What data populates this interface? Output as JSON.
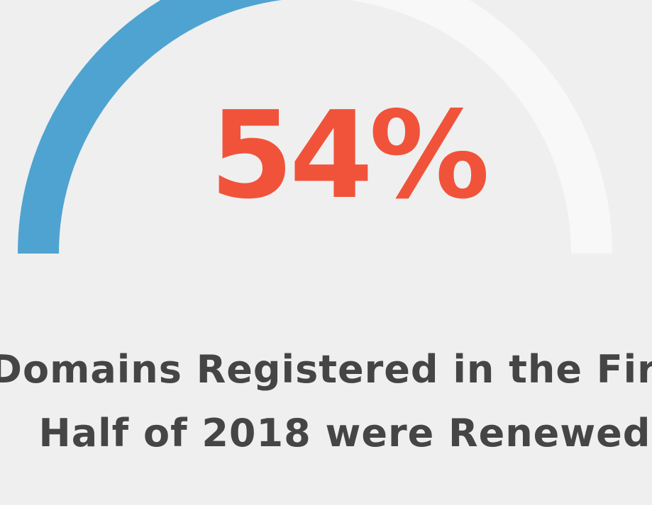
{
  "chart_data": {
    "type": "gauge",
    "values": [
      54
    ],
    "value_labels": [
      "54%"
    ],
    "ylim": [
      0,
      100
    ],
    "color": "#4fa3d0",
    "track_color": "#f8f8f8",
    "value_label_color": "#f0533a",
    "caption": [
      "Domains Registered in the Fir",
      "Half of 2018 were Renewed"
    ]
  }
}
